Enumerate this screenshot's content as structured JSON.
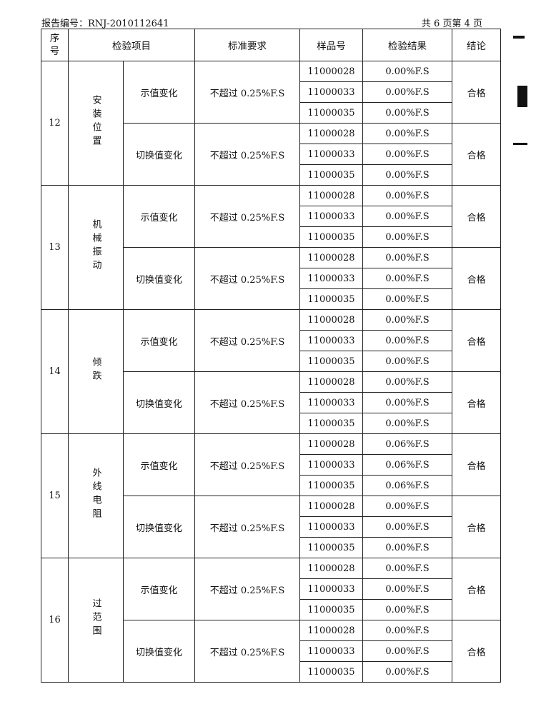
{
  "header": {
    "report_no": "报告编号：RNJ-2010112641",
    "page": "共 6 页第 4 页"
  },
  "columns": [
    "序\n号",
    "检验项目",
    "标准要求",
    "样品号",
    "检验结果",
    "结论"
  ],
  "groups": [
    {
      "seq": "12",
      "item": "安装位置",
      "subs": [
        {
          "name": "示值变化",
          "standard": "不超过 0.25%F.S",
          "samples": [
            "11000028",
            "11000033",
            "11000035"
          ],
          "results": [
            "0.00%F.S",
            "0.00%F.S",
            "0.00%F.S"
          ],
          "conclusion": "合格"
        },
        {
          "name": "切换值变化",
          "standard": "不超过 0.25%F.S",
          "samples": [
            "11000028",
            "11000033",
            "11000035"
          ],
          "results": [
            "0.00%F.S",
            "0.00%F.S",
            "0.00%F.S"
          ],
          "conclusion": "合格"
        }
      ]
    },
    {
      "seq": "13",
      "item": "机械振动",
      "subs": [
        {
          "name": "示值变化",
          "standard": "不超过 0.25%F.S",
          "samples": [
            "11000028",
            "11000033",
            "11000035"
          ],
          "results": [
            "0.00%F.S",
            "0.00%F.S",
            "0.00%F.S"
          ],
          "conclusion": "合格"
        },
        {
          "name": "切换值变化",
          "standard": "不超过 0.25%F.S",
          "samples": [
            "11000028",
            "11000033",
            "11000035"
          ],
          "results": [
            "0.00%F.S",
            "0.00%F.S",
            "0.00%F.S"
          ],
          "conclusion": "合格"
        }
      ]
    },
    {
      "seq": "14",
      "item": "倾跌",
      "subs": [
        {
          "name": "示值变化",
          "standard": "不超过 0.25%F.S",
          "samples": [
            "11000028",
            "11000033",
            "11000035"
          ],
          "results": [
            "0.00%F.S",
            "0.00%F.S",
            "0.00%F.S"
          ],
          "conclusion": "合格"
        },
        {
          "name": "切换值变化",
          "standard": "不超过 0.25%F.S",
          "samples": [
            "11000028",
            "11000033",
            "11000035"
          ],
          "results": [
            "0.00%F.S",
            "0.00%F.S",
            "0.00%F.S"
          ],
          "conclusion": "合格"
        }
      ]
    },
    {
      "seq": "15",
      "item": "外线电阻",
      "subs": [
        {
          "name": "示值变化",
          "standard": "不超过 0.25%F.S",
          "samples": [
            "11000028",
            "11000033",
            "11000035"
          ],
          "results": [
            "0.06%F.S",
            "0.06%F.S",
            "0.06%F.S"
          ],
          "conclusion": "合格"
        },
        {
          "name": "切换值变化",
          "standard": "不超过 0.25%F.S",
          "samples": [
            "11000028",
            "11000033",
            "11000035"
          ],
          "results": [
            "0.00%F.S",
            "0.00%F.S",
            "0.00%F.S"
          ],
          "conclusion": "合格"
        }
      ]
    },
    {
      "seq": "16",
      "item": "过范围",
      "subs": [
        {
          "name": "示值变化",
          "standard": "不超过 0.25%F.S",
          "samples": [
            "11000028",
            "11000033",
            "11000035"
          ],
          "results": [
            "0.00%F.S",
            "0.00%F.S",
            "0.00%F.S"
          ],
          "conclusion": "合格"
        },
        {
          "name": "切换值变化",
          "standard": "不超过 0.25%F.S",
          "samples": [
            "11000028",
            "11000033",
            "11000035"
          ],
          "results": [
            "0.00%F.S",
            "0.00%F.S",
            "0.00%F.S"
          ],
          "conclusion": "合格"
        }
      ]
    }
  ]
}
